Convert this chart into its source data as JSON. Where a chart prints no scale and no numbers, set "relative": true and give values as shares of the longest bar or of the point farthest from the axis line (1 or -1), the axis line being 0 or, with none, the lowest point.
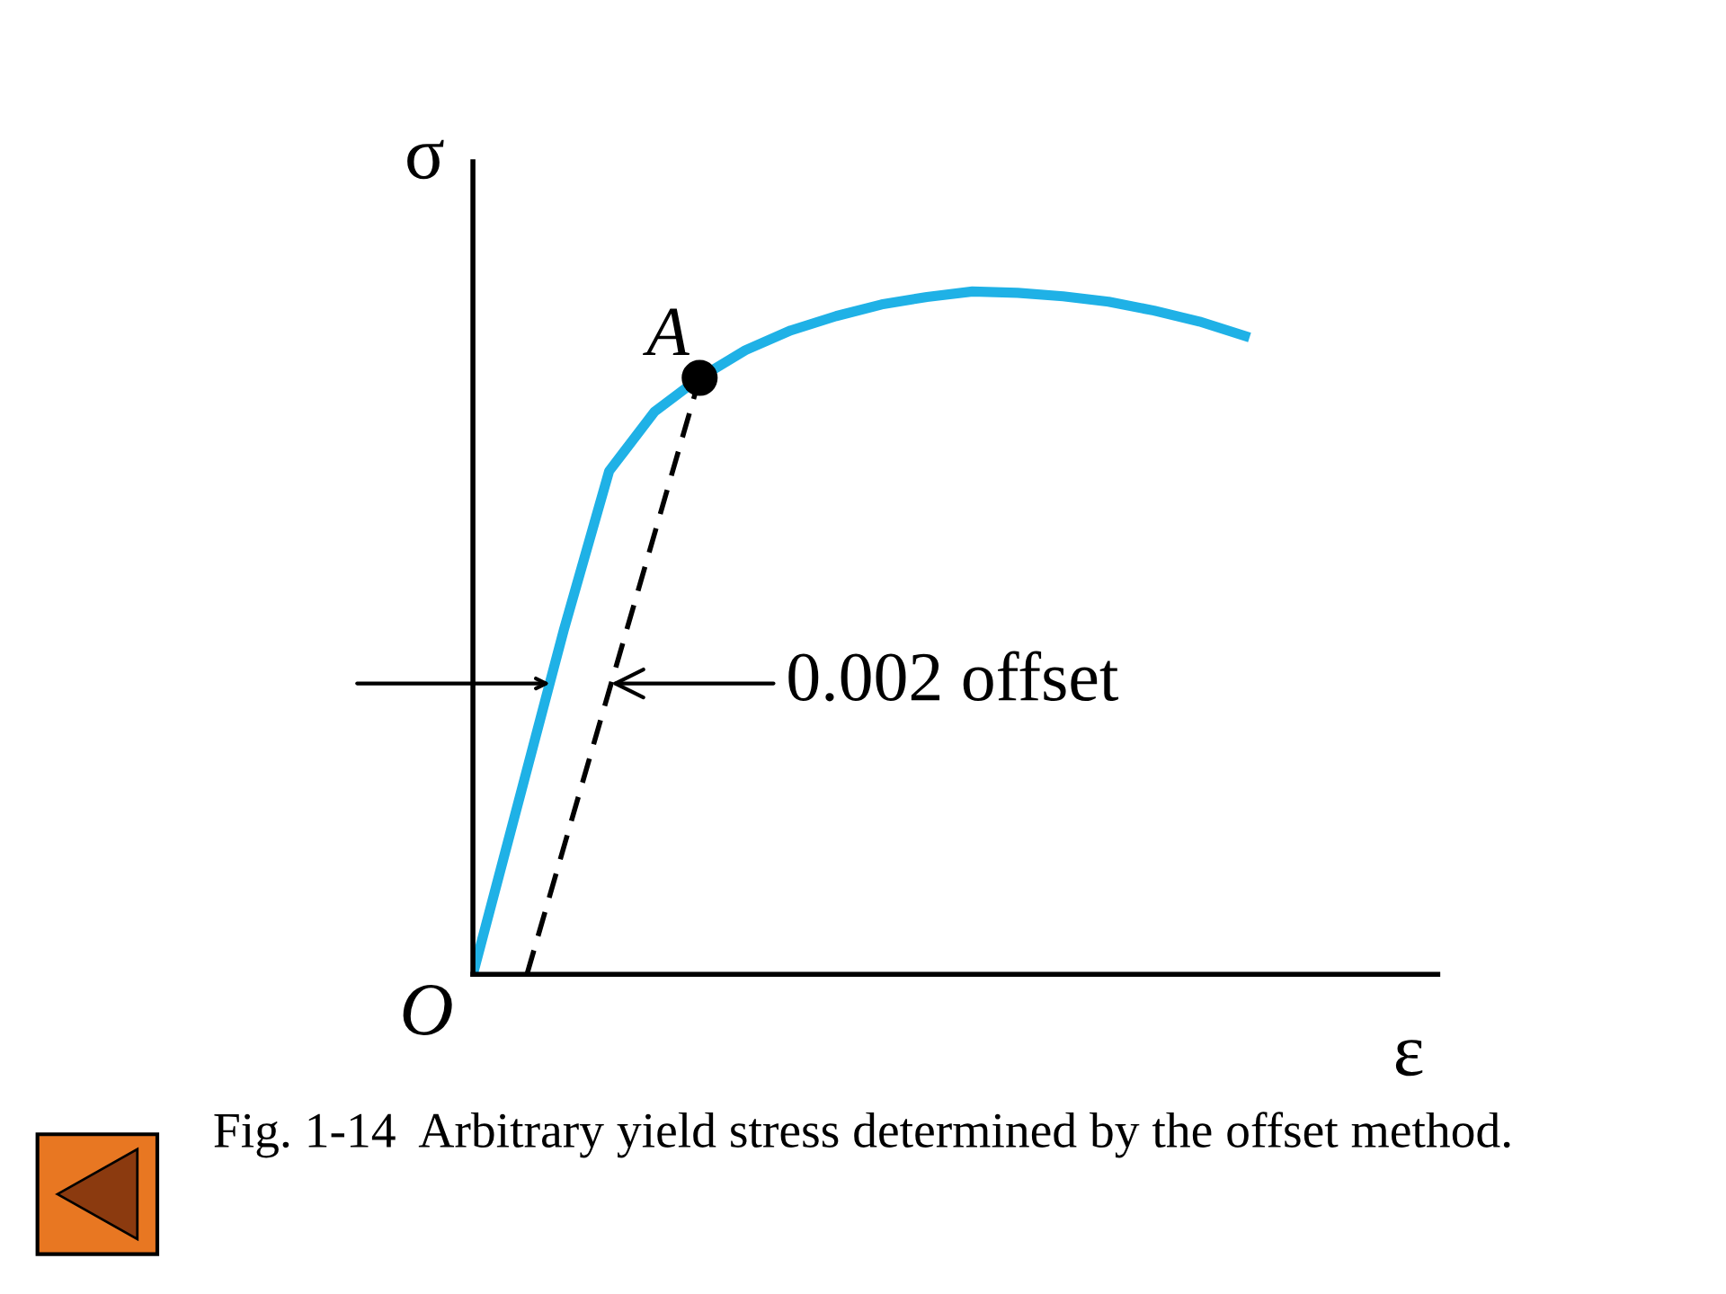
{
  "chart_data": {
    "type": "line",
    "relative": true,
    "xlabel": "ε",
    "ylabel": "σ",
    "categories": [
      null,
      null,
      null,
      null,
      null,
      null,
      null,
      null,
      null,
      null,
      null,
      null,
      null,
      null,
      null,
      null,
      null,
      null
    ],
    "series": [
      {
        "color": "#1fb1e6",
        "values": [
          0,
          0.252,
          0.504,
          0.737,
          0.824,
          0.874,
          0.914,
          0.943,
          0.964,
          0.981,
          0.992,
          1.0,
          0.998,
          0.993,
          0.985,
          0.972,
          0.956,
          0.935
        ]
      }
    ],
    "annotations": [
      "A",
      "0.002 offset",
      "O",
      "Fig. 1-14  Arbitrary yield stress determined by the offset method."
    ]
  }
}
